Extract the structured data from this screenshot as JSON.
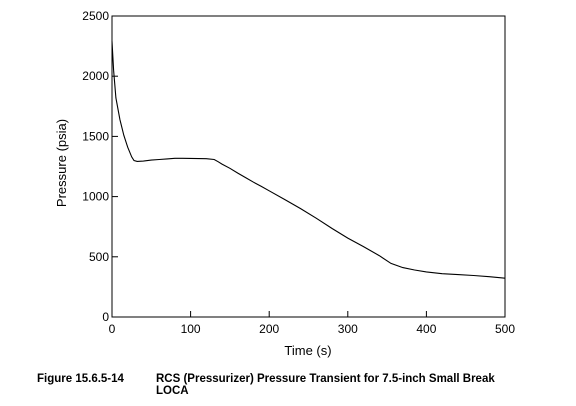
{
  "chart_data": {
    "type": "line",
    "title": "",
    "xlabel": "Time (s)",
    "ylabel": "Pressure (psia)",
    "xlim": [
      0,
      500
    ],
    "ylim": [
      0,
      2500
    ],
    "xticks": [
      0,
      100,
      200,
      300,
      400,
      500
    ],
    "yticks": [
      0,
      500,
      1000,
      1500,
      2000,
      2500
    ],
    "grid": false,
    "legend": "none",
    "line_color": "#000000",
    "series": [
      {
        "x": [
          0,
          2,
          5,
          10,
          15,
          20,
          25,
          28,
          32,
          40,
          50,
          60,
          70,
          80,
          90,
          100,
          110,
          120,
          130,
          135,
          140,
          150,
          160,
          170,
          180,
          190,
          200,
          220,
          240,
          260,
          280,
          300,
          320,
          340,
          355,
          370,
          385,
          400,
          420,
          440,
          460,
          480,
          500
        ],
        "y": [
          2290,
          2050,
          1820,
          1640,
          1510,
          1410,
          1330,
          1300,
          1292,
          1295,
          1303,
          1308,
          1313,
          1318,
          1318,
          1317,
          1316,
          1315,
          1308,
          1290,
          1270,
          1235,
          1195,
          1158,
          1120,
          1085,
          1048,
          975,
          900,
          820,
          735,
          655,
          585,
          510,
          445,
          410,
          390,
          375,
          360,
          352,
          345,
          335,
          322
        ]
      }
    ]
  },
  "figure": {
    "number": "Figure 15.6.5-14",
    "caption_line1": "RCS (Pressurizer) Pressure Transient for 7.5-inch Small Break",
    "caption_line2": "LOCA"
  }
}
